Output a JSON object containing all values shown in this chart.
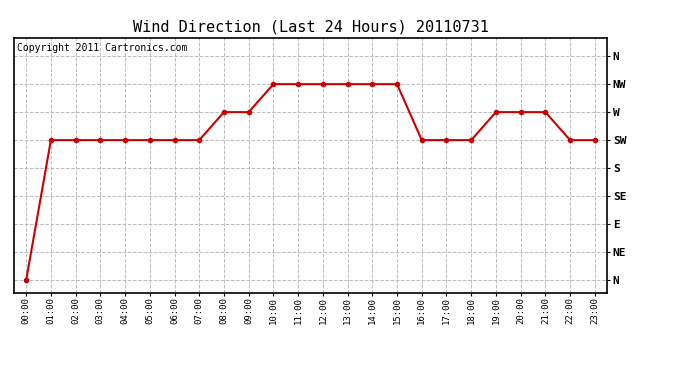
{
  "title": "Wind Direction (Last 24 Hours) 20110731",
  "copyright_text": "Copyright 2011 Cartronics.com",
  "x_labels": [
    "00:00",
    "01:00",
    "02:00",
    "03:00",
    "04:00",
    "05:00",
    "06:00",
    "07:00",
    "08:00",
    "09:00",
    "10:00",
    "11:00",
    "12:00",
    "13:00",
    "14:00",
    "15:00",
    "16:00",
    "17:00",
    "18:00",
    "19:00",
    "20:00",
    "21:00",
    "22:00",
    "23:00"
  ],
  "y_values": [
    0,
    225,
    225,
    225,
    225,
    225,
    225,
    225,
    270,
    270,
    315,
    315,
    315,
    315,
    315,
    315,
    225,
    225,
    225,
    270,
    270,
    270,
    225,
    225
  ],
  "y_ticks": [
    360,
    315,
    270,
    225,
    180,
    135,
    90,
    45,
    0
  ],
  "y_tick_labels": [
    "N",
    "NW",
    "W",
    "SW",
    "S",
    "SE",
    "E",
    "NE",
    "N"
  ],
  "line_color": "#cc0000",
  "marker": "o",
  "marker_size": 3,
  "marker_color": "#cc0000",
  "bg_color": "#ffffff",
  "plot_bg_color": "#ffffff",
  "grid_color": "#bbbbbb",
  "grid_style": "--",
  "title_fontsize": 11,
  "copyright_fontsize": 7,
  "ylim": [
    -20,
    390
  ],
  "border_color": "#000000"
}
